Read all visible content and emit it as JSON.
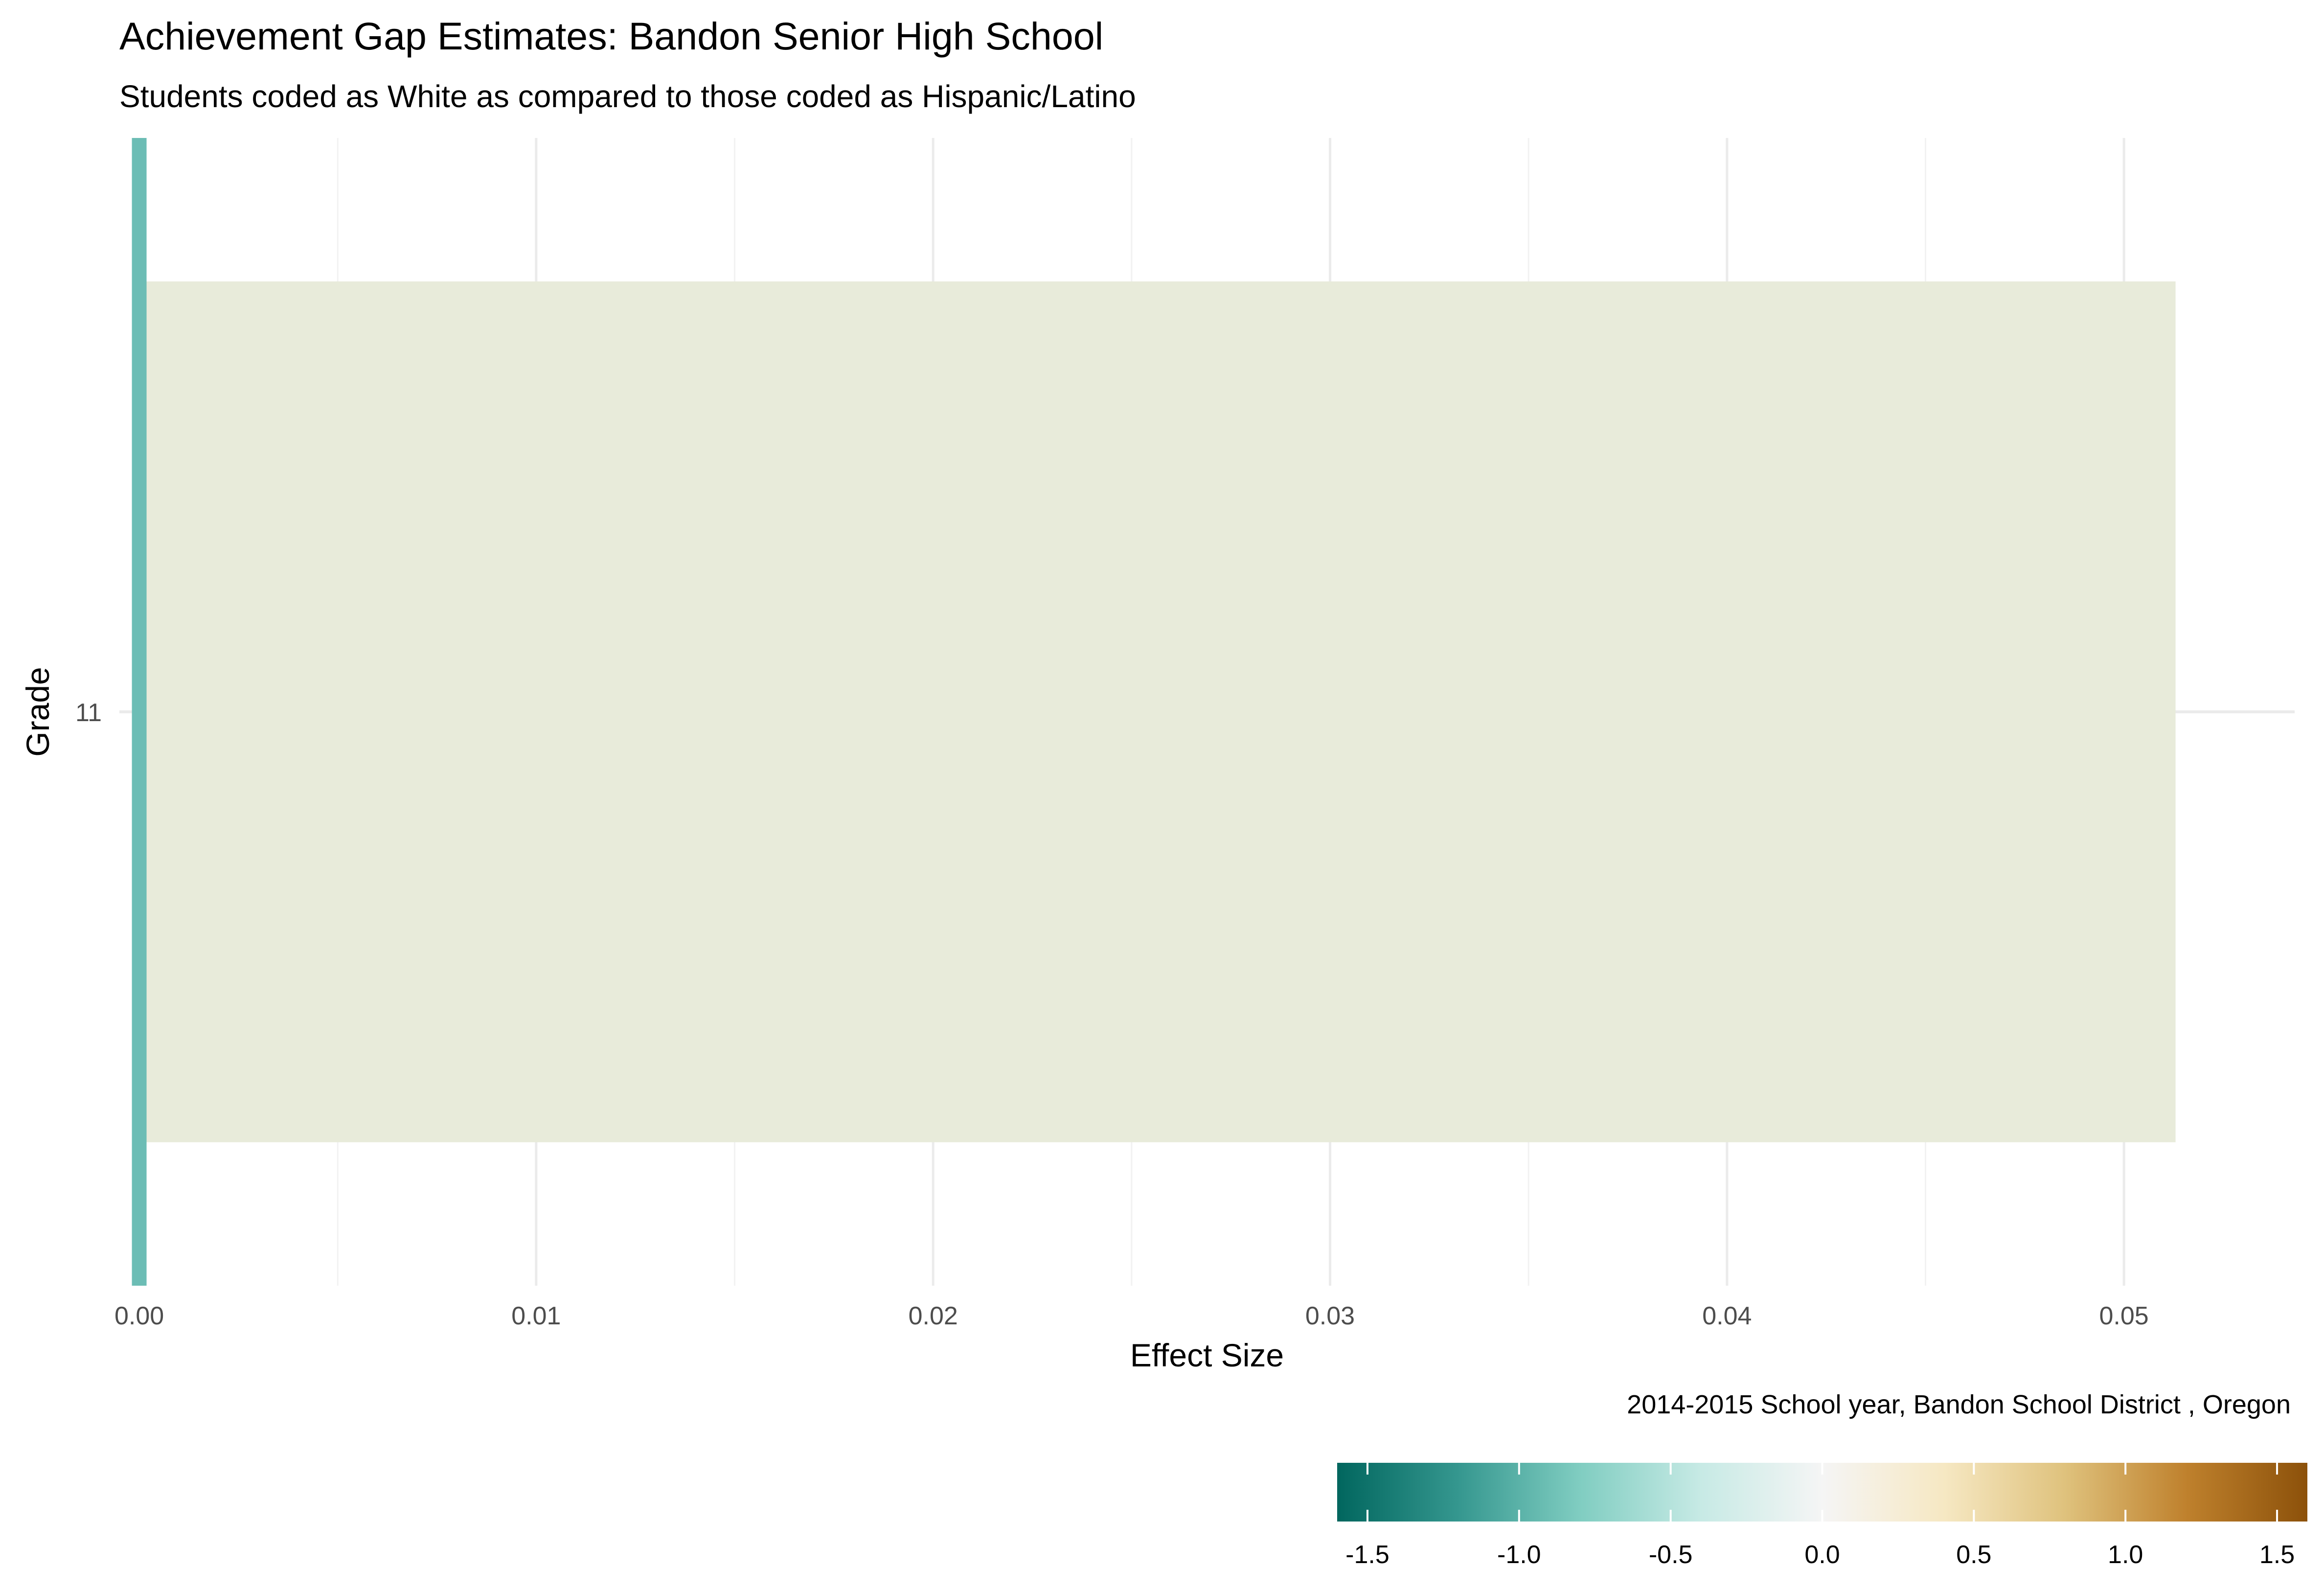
{
  "title": "Achievement Gap Estimates: Bandon Senior High School",
  "subtitle": "Students coded as White as compared to those coded as Hispanic/Latino",
  "caption": "2014-2015 School year,  Bandon School District , Oregon",
  "chart_data": {
    "type": "bar",
    "orientation": "horizontal",
    "xlabel": "Effect Size",
    "ylabel": "Grade",
    "categories": [
      "11"
    ],
    "values": [
      0.0513
    ],
    "bar_color": "#e8ebda",
    "xlim": [
      -0.0005,
      0.0543
    ],
    "x_ticks": [
      0.0,
      0.01,
      0.02,
      0.03,
      0.04,
      0.05
    ],
    "x_tick_labels": [
      "0.00",
      "0.01",
      "0.02",
      "0.03",
      "0.04",
      "0.05"
    ],
    "reference_line": {
      "x": 0.0,
      "color": "#6cbdb5"
    },
    "grid": true,
    "legend": {
      "type": "colorbar",
      "placement": "bottom-right",
      "range": [
        -1.6,
        1.6
      ],
      "ticks": [
        -1.5,
        -1.0,
        -0.5,
        0.0,
        0.5,
        1.0,
        1.5
      ],
      "tick_labels": [
        "-1.5",
        "-1.0",
        "-0.5",
        "0.0",
        "0.5",
        "1.0",
        "1.5"
      ],
      "colors": [
        "#01665e",
        "#35978f",
        "#80cdc1",
        "#c7eae5",
        "#f5f5f5",
        "#f6e8c3",
        "#dfc27d",
        "#bf812d",
        "#8c510a"
      ]
    }
  }
}
